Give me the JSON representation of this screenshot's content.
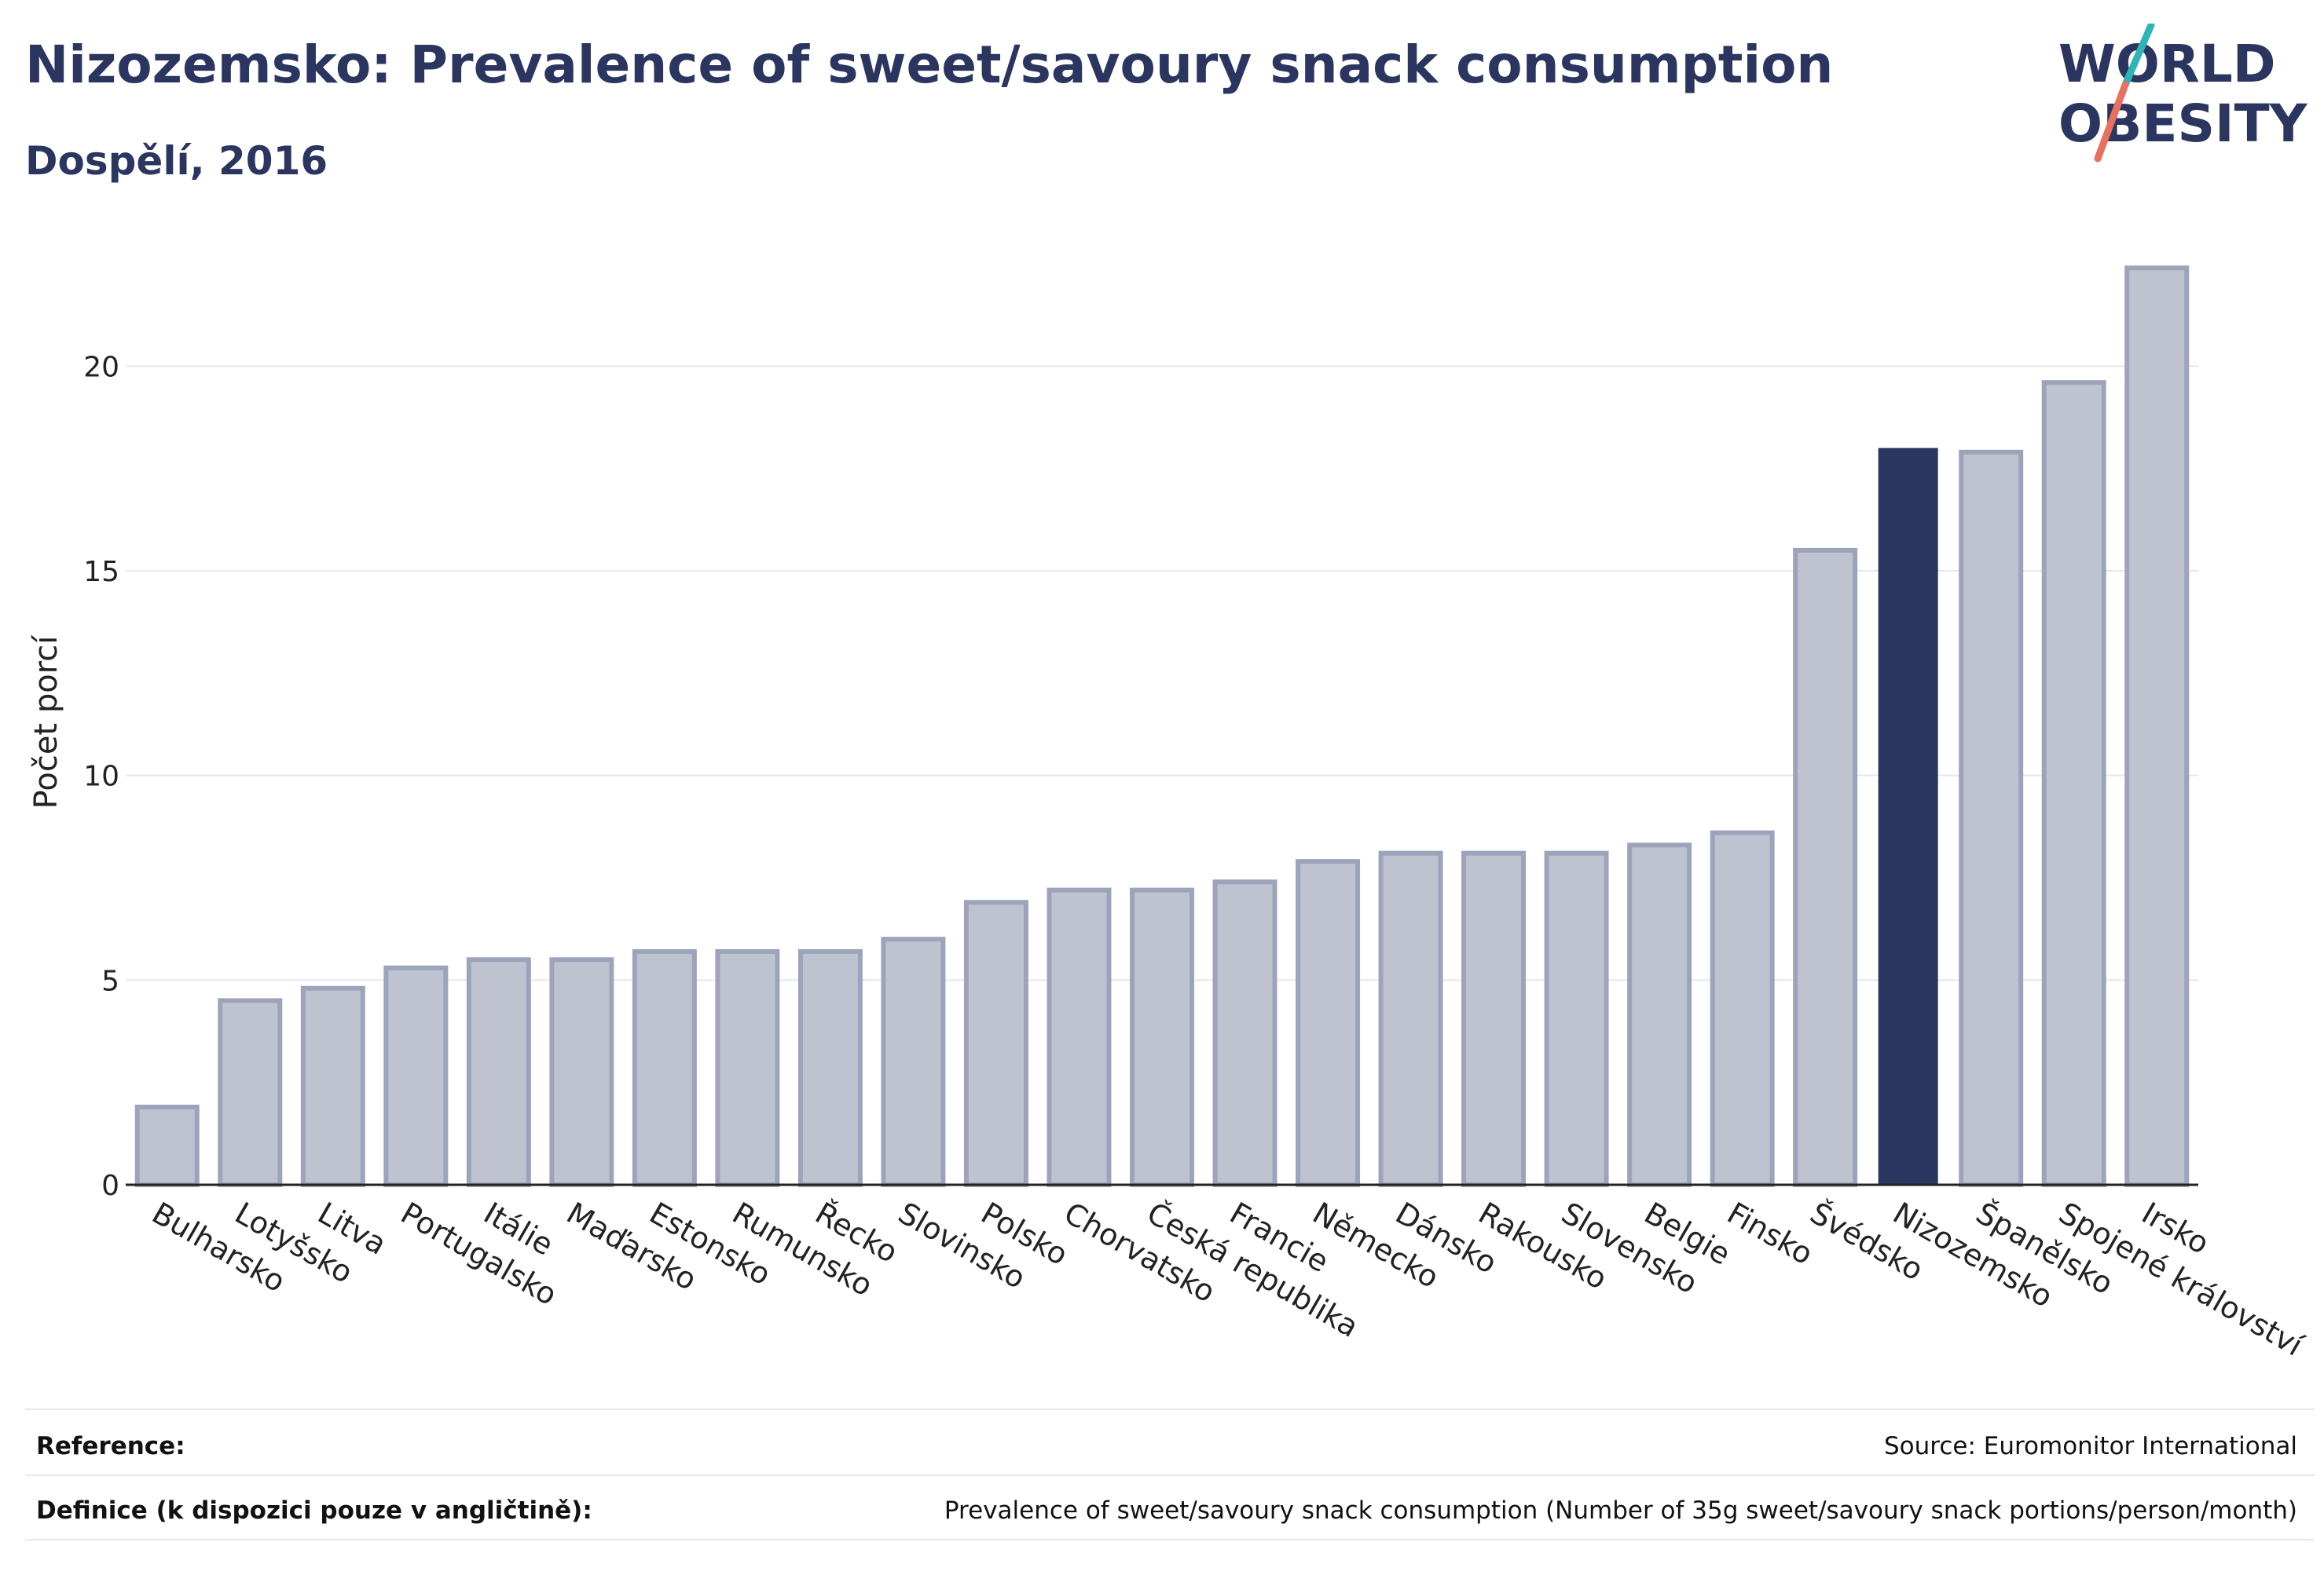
{
  "header": {
    "title": "Nizozemsko: Prevalence of sweet/savoury snack consumption",
    "subtitle": "Dospělí, 2016"
  },
  "logo": {
    "line1": "WORLD",
    "line2": "OBESITY",
    "colors": {
      "text": "#2a3560",
      "slash_teal": "#2fb5b8",
      "slash_coral": "#e8705e"
    }
  },
  "colors": {
    "bar_fill": "#bfc3d0",
    "bar_stroke": "#9da3bb",
    "highlight": "#2a3560",
    "grid": "#e6e8ee",
    "axis": "#222222"
  },
  "chart_data": {
    "type": "bar",
    "title": "Nizozemsko: Prevalence of sweet/savoury snack consumption",
    "subtitle": "Dospělí, 2016",
    "xlabel": "",
    "ylabel": "Počet porcí",
    "ylim": [
      0,
      22.5
    ],
    "yticks": [
      0,
      5,
      10,
      15,
      20
    ],
    "grid": true,
    "highlight": "Nizozemsko",
    "categories": [
      "Bulharsko",
      "Lotyšsko",
      "Litva",
      "Portugalsko",
      "Itálie",
      "Maďarsko",
      "Estonsko",
      "Rumunsko",
      "Řecko",
      "Slovinsko",
      "Polsko",
      "Chorvatsko",
      "Česká republika",
      "Francie",
      "Německo",
      "Dánsko",
      "Rakousko",
      "Slovensko",
      "Belgie",
      "Finsko",
      "Švédsko",
      "Nizozemsko",
      "Španělsko",
      "Spojené království",
      "Irsko"
    ],
    "values": [
      1.9,
      4.5,
      4.8,
      5.3,
      5.5,
      5.5,
      5.7,
      5.7,
      5.7,
      6.0,
      6.9,
      7.2,
      7.2,
      7.4,
      7.9,
      8.1,
      8.1,
      8.1,
      8.3,
      8.6,
      15.5,
      18.0,
      17.9,
      19.6,
      22.4
    ]
  },
  "footer": {
    "reference_label": "Reference:",
    "reference_value": "Source: Euromonitor International",
    "definition_label": "Definice (k dispozici pouze v angličtině):",
    "definition_value": "Prevalence of sweet/savoury snack consumption (Number of 35g sweet/savoury snack portions/person/month)"
  }
}
